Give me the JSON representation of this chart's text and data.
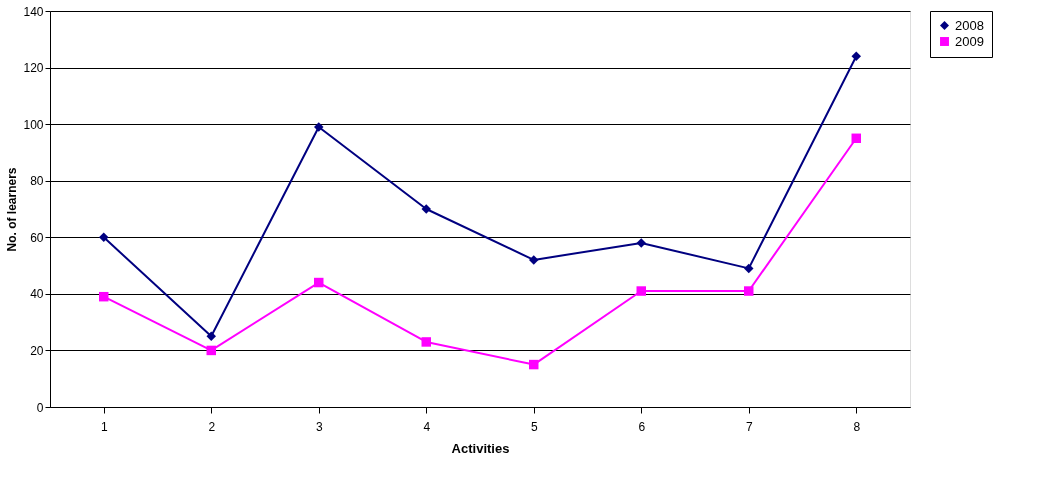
{
  "chart_data": {
    "type": "line",
    "xlabel": "Activities",
    "ylabel": "No. of learners",
    "categories": [
      "1",
      "2",
      "3",
      "4",
      "5",
      "6",
      "7",
      "8"
    ],
    "series": [
      {
        "name": "2008",
        "color": "#000080",
        "marker": "diamond",
        "values": [
          60,
          25,
          99,
          70,
          52,
          58,
          49,
          124
        ]
      },
      {
        "name": "2009",
        "color": "#ff00ff",
        "marker": "square",
        "values": [
          39,
          20,
          44,
          23,
          15,
          41,
          41,
          95
        ]
      }
    ],
    "ylim": [
      0,
      140
    ],
    "yticks": [
      0,
      20,
      40,
      60,
      80,
      100,
      120,
      140
    ],
    "grid": "y",
    "legend": "right",
    "line_style": "solid"
  }
}
